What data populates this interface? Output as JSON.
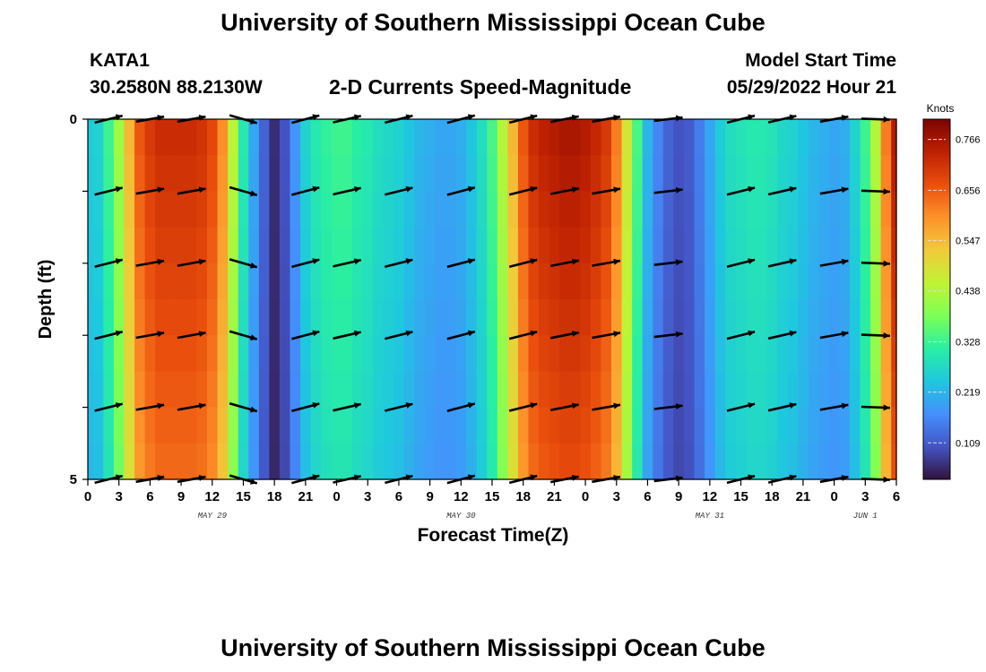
{
  "header": {
    "title": "University of Southern Mississippi Ocean Cube",
    "station_id": "KATA1",
    "station_coords": "30.2580N  88.2130W",
    "plot_title": "2-D Currents Speed-Magnitude",
    "model_start_label": "Model Start Time",
    "model_start_value": "05/29/2022 Hour 21"
  },
  "footer": {
    "title": "University of Southern Mississippi Ocean Cube"
  },
  "chart_data": {
    "type": "heatmap",
    "xlabel": "Forecast Time(Z)",
    "ylabel": "Depth (ft)",
    "x_range": [
      0,
      78
    ],
    "y_range": [
      0,
      5
    ],
    "x_tick_values": [
      0,
      3,
      6,
      9,
      12,
      15,
      18,
      21,
      24,
      27,
      30,
      33,
      36,
      39,
      42,
      45,
      48,
      51,
      54,
      57,
      60,
      63,
      66,
      69,
      72,
      75,
      78
    ],
    "x_tick_labels": [
      "0",
      "3",
      "6",
      "9",
      "12",
      "15",
      "18",
      "21",
      "0",
      "3",
      "6",
      "9",
      "12",
      "15",
      "18",
      "21",
      "0",
      "3",
      "6",
      "9",
      "12",
      "15",
      "18",
      "21",
      "0",
      "3",
      "6"
    ],
    "y_tick_values": [
      0,
      5
    ],
    "y_tick_labels": [
      "0",
      "5"
    ],
    "date_labels": [
      {
        "x": 12,
        "label": "MAY 29"
      },
      {
        "x": 36,
        "label": "MAY 30"
      },
      {
        "x": 60,
        "label": "MAY 31"
      },
      {
        "x": 75,
        "label": "JUN 1"
      }
    ],
    "colorbar": {
      "title": "Knots",
      "min": 0.03,
      "max": 0.81,
      "tick_values": [
        0.766,
        0.656,
        0.547,
        0.438,
        0.328,
        0.219,
        0.109
      ],
      "tick_labels": [
        "0.766",
        "0.656",
        "0.547",
        "0.438",
        "0.328",
        "0.219",
        "0.109"
      ],
      "colors": [
        "#30123b",
        "#4454c4",
        "#4490fe",
        "#1fc8de",
        "#29efa2",
        "#7dff56",
        "#c1f334",
        "#f1ca3a",
        "#fe922a",
        "#ea4f0d",
        "#be2102",
        "#7a0403"
      ]
    },
    "speed_time_hours": [
      0,
      1,
      2,
      3,
      4,
      5,
      6,
      7,
      8,
      9,
      10,
      11,
      12,
      13,
      14,
      15,
      16,
      17,
      18,
      19,
      20,
      21,
      22,
      23,
      24,
      25,
      26,
      27,
      28,
      29,
      30,
      31,
      32,
      33,
      34,
      35,
      36,
      37,
      38,
      39,
      40,
      41,
      42,
      43,
      44,
      45,
      46,
      47,
      48,
      49,
      50,
      51,
      52,
      53,
      54,
      55,
      56,
      57,
      58,
      59,
      60,
      61,
      62,
      63,
      64,
      65,
      66,
      67,
      68,
      69,
      70,
      71,
      72,
      73,
      74,
      75,
      76,
      77,
      78
    ],
    "speed_knots": [
      0.25,
      0.26,
      0.33,
      0.42,
      0.55,
      0.66,
      0.7,
      0.72,
      0.72,
      0.72,
      0.72,
      0.71,
      0.68,
      0.6,
      0.45,
      0.3,
      0.2,
      0.12,
      0.06,
      0.1,
      0.18,
      0.26,
      0.3,
      0.32,
      0.33,
      0.33,
      0.31,
      0.3,
      0.28,
      0.27,
      0.26,
      0.24,
      0.22,
      0.21,
      0.2,
      0.2,
      0.21,
      0.24,
      0.28,
      0.34,
      0.44,
      0.55,
      0.66,
      0.72,
      0.74,
      0.75,
      0.76,
      0.76,
      0.75,
      0.73,
      0.7,
      0.62,
      0.48,
      0.34,
      0.22,
      0.16,
      0.12,
      0.1,
      0.11,
      0.15,
      0.2,
      0.25,
      0.28,
      0.29,
      0.3,
      0.3,
      0.29,
      0.27,
      0.26,
      0.24,
      0.22,
      0.21,
      0.2,
      0.21,
      0.26,
      0.33,
      0.44,
      0.62,
      0.75
    ],
    "depth_levels": [
      0,
      1,
      2,
      3,
      4,
      5
    ],
    "vector_time_hours": [
      2,
      6,
      10,
      15,
      21,
      25,
      30,
      36,
      42,
      46,
      50,
      56,
      63,
      67,
      72,
      76
    ],
    "vector_direction_deg": [
      76,
      80,
      80,
      106,
      75,
      77,
      76,
      75,
      76,
      79,
      80,
      83,
      76,
      77,
      80,
      92
    ]
  }
}
